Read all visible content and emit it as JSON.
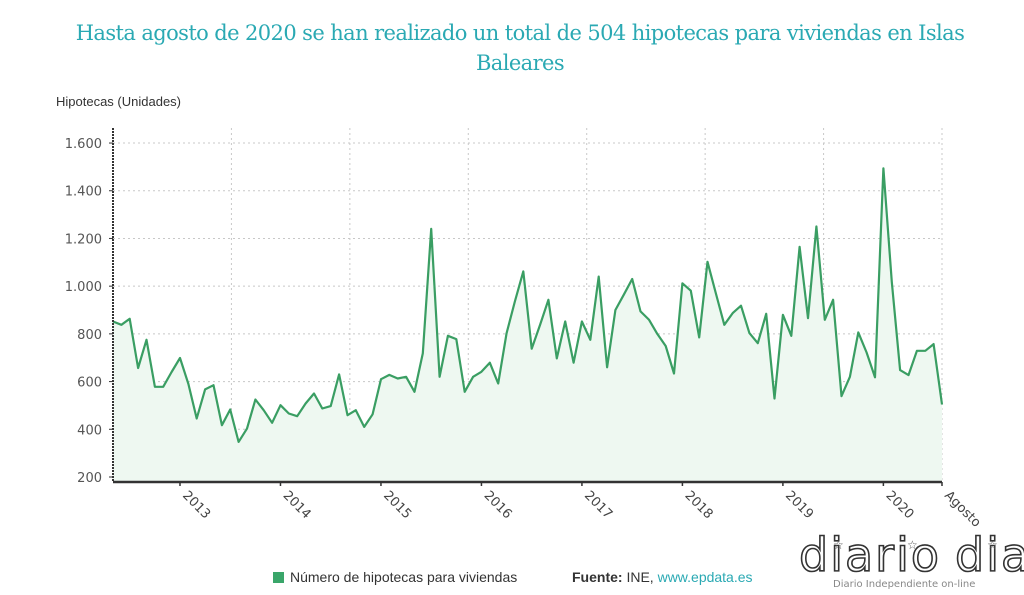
{
  "title": "Hasta agosto de 2020 se han realizado un total de 504 hipotecas para viviendas en Islas Baleares",
  "legend": {
    "label": "Número de hipotecas para viviendas",
    "color": "#3aa66a"
  },
  "source": {
    "prefix": "Fuente:",
    "text": " INE, ",
    "link": "www.epdata.es"
  },
  "logo": {
    "word1": "diario",
    "word2": "dia",
    "tagline": "Diario Independiente on-line"
  },
  "colors": {
    "title": "#2aa9b3",
    "line": "#3a9e63",
    "area": "#eef8f1",
    "grid": "#c8c8c8",
    "axis": "#333333"
  },
  "chart_data": {
    "type": "area",
    "title": "Hasta agosto de 2020 se han realizado un total de 504 hipotecas para viviendas en Islas Baleares",
    "xlabel": "",
    "ylabel": "Hipotecas (Unidades)",
    "ylim": [
      179,
      1663
    ],
    "yticks": [
      200,
      400,
      600,
      800,
      1000,
      1200,
      1400,
      1600
    ],
    "ytick_labels": [
      "200",
      "400",
      "600",
      "800",
      "1.000",
      "1.200",
      "1.400",
      "1.600"
    ],
    "x_start": "2012-05",
    "x_end": "2020-08",
    "xticks": [
      {
        "label": "2013",
        "index": 8
      },
      {
        "label": "2014",
        "index": 20
      },
      {
        "label": "2015",
        "index": 32
      },
      {
        "label": "2016",
        "index": 44
      },
      {
        "label": "2017",
        "index": 56
      },
      {
        "label": "2018",
        "index": 68
      },
      {
        "label": "2019",
        "index": 80
      },
      {
        "label": "2020",
        "index": 92
      },
      {
        "label": "Agosto",
        "index": 99
      }
    ],
    "grid": true,
    "legend_position": "bottom",
    "series": [
      {
        "name": "Número de hipotecas para viviendas",
        "values": [
          852,
          838,
          863,
          657,
          775,
          578,
          578,
          640,
          699,
          590,
          445,
          567,
          585,
          417,
          483,
          347,
          403,
          525,
          480,
          427,
          501,
          466,
          455,
          508,
          550,
          487,
          497,
          630,
          459,
          480,
          410,
          463,
          610,
          628,
          613,
          620,
          557,
          718,
          1240,
          620,
          792,
          778,
          557,
          620,
          641,
          679,
          592,
          803,
          936,
          1062,
          738,
          838,
          943,
          697,
          852,
          679,
          852,
          775,
          1040,
          660,
          900,
          964,
          1030,
          894,
          860,
          800,
          749,
          634,
          1012,
          981,
          785,
          1102,
          969,
          838,
          887,
          918,
          803,
          761,
          884,
          529,
          880,
          792,
          1165,
          866,
          1250,
          859,
          943,
          539,
          620,
          806,
          722,
          618,
          1494,
          1018,
          648,
          627,
          729,
          729,
          757,
          504
        ]
      }
    ]
  }
}
